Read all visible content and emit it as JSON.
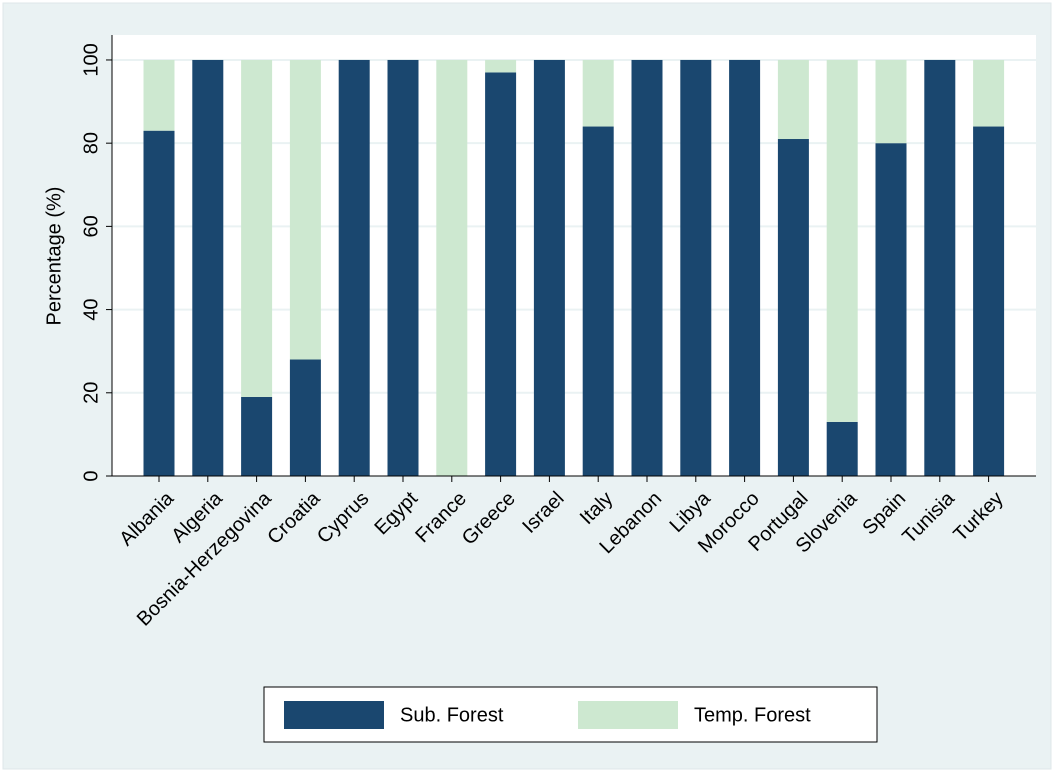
{
  "chart_data": {
    "type": "stacked_bar",
    "y_label": "Percentage (%)",
    "categories": [
      "Albania",
      "Algeria",
      "Bosnia-Herzegovina",
      "Croatia",
      "Cyprus",
      "Egypt",
      "France",
      "Greece",
      "Israel",
      "Italy",
      "Lebanon",
      "Libya",
      "Morocco",
      "Portugal",
      "Slovenia",
      "Spain",
      "Tunisia",
      "Turkey"
    ],
    "series": [
      {
        "name": "Sub. Forest",
        "color": "#1a476f",
        "values": [
          83,
          100,
          19,
          28,
          100,
          100,
          0,
          97,
          100,
          84,
          100,
          100,
          100,
          81,
          13,
          80,
          100,
          84
        ]
      },
      {
        "name": "Temp. Forest",
        "color": "#cde8d0",
        "values": [
          17,
          0,
          81,
          72,
          0,
          0,
          100,
          3,
          0,
          16,
          0,
          0,
          0,
          19,
          87,
          20,
          0,
          16
        ]
      }
    ],
    "ylim": [
      0,
      106
    ],
    "yticks": [
      0,
      20,
      40,
      60,
      80,
      100
    ],
    "grid": true
  }
}
